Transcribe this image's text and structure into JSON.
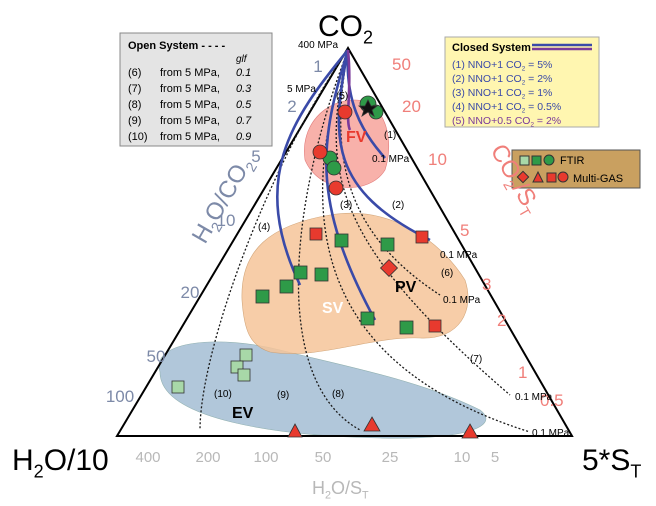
{
  "corners": {
    "top": [
      "CO",
      "2"
    ],
    "left": [
      "H",
      "2",
      "O/10"
    ],
    "right": [
      "5*S",
      "T"
    ]
  },
  "left_axis": {
    "label": [
      "H",
      "2",
      "O/CO",
      "2"
    ],
    "ticks": [
      "1",
      "2",
      "5",
      "10",
      "20",
      "50",
      "100"
    ]
  },
  "right_axis": {
    "label": [
      "CO",
      "2",
      "/S",
      "T"
    ],
    "ticks": [
      "50",
      "20",
      "10",
      "5",
      "3",
      "2",
      "1",
      "0.5"
    ]
  },
  "bottom_axis": {
    "label": [
      "H",
      "2",
      "O/S",
      "T"
    ],
    "ticks": [
      "400",
      "200",
      "100",
      "50",
      "25",
      "10",
      "5"
    ]
  },
  "open_system": {
    "title": "Open System - - - -",
    "unit": "glf",
    "rows": [
      [
        "(6)",
        "from 5 MPa,",
        "0.1"
      ],
      [
        "(7)",
        "from 5 MPa,",
        "0.3"
      ],
      [
        "(8)",
        "from 5 MPa,",
        "0.5"
      ],
      [
        "(9)",
        "from 5 MPa,",
        "0.7"
      ],
      [
        "(10)",
        "from 5 MPa,",
        "0.9"
      ]
    ]
  },
  "closed_system": {
    "title": "Closed System",
    "rows": [
      [
        "(1) NNO+1 CO",
        "2",
        " = 5%"
      ],
      [
        "(2) NNO+1 CO",
        "2",
        " = 2%"
      ],
      [
        "(3) NNO+1 CO",
        "2",
        " = 1%"
      ],
      [
        "(4) NNO+1 CO",
        "2",
        " = 0.5%"
      ],
      [
        "(5) NNO+0.5 CO",
        "2",
        " = 2%"
      ]
    ]
  },
  "legend": [
    "FTIR",
    "Multi-GAS"
  ],
  "regions": [
    "FV",
    "PV",
    "SV",
    "EV"
  ],
  "annotations": {
    "pressures": [
      "400 MPa",
      "5 MPa",
      "0.1 MPa",
      "0.1 MPa",
      "0.1 MPa",
      "0.1 MPa",
      "0.1 MPa"
    ],
    "curves": [
      "(1)",
      "(2)",
      "(3)",
      "(4)",
      "(5)",
      "(6)",
      "(7)",
      "(8)",
      "(9)",
      "(10)"
    ]
  }
}
